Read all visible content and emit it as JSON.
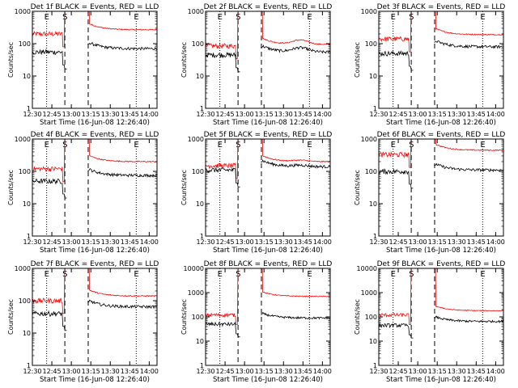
{
  "shared": {
    "xlabel": "Start Time (16-Jun-08 12:26:40)",
    "ylabel": "Counts/sec",
    "x_ticks": [
      "12:30",
      "12:45",
      "13:00",
      "13:15",
      "13:30",
      "13:45",
      "14:00"
    ],
    "x_tick_minutes": [
      30,
      45,
      60,
      75,
      90,
      105,
      120
    ],
    "markers": [
      {
        "label": "E",
        "minute": 41,
        "style": "dotted"
      },
      {
        "label": "S",
        "minute": 55,
        "style": "dashed"
      },
      {
        "label": "",
        "minute": 73,
        "style": "dashed"
      },
      {
        "label": "E",
        "minute": 110,
        "style": "dotted"
      }
    ],
    "x_range_minutes": [
      30,
      126
    ],
    "colors": {
      "events": "#000000",
      "lld": "#ff0000"
    }
  },
  "chart_data": [
    {
      "type": "line",
      "title": "Det 1f BLACK = Events, RED = LLD",
      "y_ticks": [
        "1",
        "10",
        "100",
        "1000"
      ],
      "ylim": [
        1,
        1000
      ],
      "events_level": 55,
      "lld_level": 200,
      "events_post": 70,
      "lld_post": 270,
      "bump": 1.0
    },
    {
      "type": "line",
      "title": "Det 2f BLACK = Events, RED = LLD",
      "y_ticks": [
        "1",
        "10",
        "100",
        "1000"
      ],
      "ylim": [
        1,
        1000
      ],
      "events_level": 45,
      "lld_level": 85,
      "events_post": 55,
      "lld_post": 95,
      "bump": 1.35
    },
    {
      "type": "line",
      "title": "Det 3f BLACK = Events, RED = LLD",
      "y_ticks": [
        "1",
        "10",
        "100",
        "1000"
      ],
      "ylim": [
        1,
        1000
      ],
      "events_level": 50,
      "lld_level": 140,
      "events_post": 80,
      "lld_post": 190,
      "bump": 1.0
    },
    {
      "type": "line",
      "title": "Det 4f BLACK = Events, RED = LLD",
      "y_ticks": [
        "1",
        "10",
        "100",
        "1000"
      ],
      "ylim": [
        1,
        1000
      ],
      "events_level": 50,
      "lld_level": 120,
      "events_post": 75,
      "lld_post": 200,
      "bump": 1.0
    },
    {
      "type": "line",
      "title": "Det 5f BLACK = Events, RED = LLD",
      "y_ticks": [
        "1",
        "10",
        "100",
        "1000"
      ],
      "ylim": [
        1,
        1000
      ],
      "events_level": 110,
      "lld_level": 150,
      "events_post": 140,
      "lld_post": 200,
      "bump": 1.1
    },
    {
      "type": "line",
      "title": "Det 6f BLACK = Events, RED = LLD",
      "y_ticks": [
        "1",
        "10",
        "100",
        "1000"
      ],
      "ylim": [
        1,
        1000
      ],
      "events_level": 100,
      "lld_level": 330,
      "events_post": 110,
      "lld_post": 450,
      "bump": 1.0
    },
    {
      "type": "line",
      "title": "Det 7f BLACK = Events, RED = LLD",
      "y_ticks": [
        "1",
        "10",
        "100",
        "1000"
      ],
      "ylim": [
        1,
        1000
      ],
      "events_level": 40,
      "lld_level": 100,
      "events_post": 65,
      "lld_post": 140,
      "bump": 1.0
    },
    {
      "type": "line",
      "title": "Det 8f BLACK = Events, RED = LLD",
      "y_ticks": [
        "1",
        "10",
        "100",
        "1000",
        "10000"
      ],
      "ylim": [
        1,
        10000
      ],
      "events_level": 50,
      "lld_level": 120,
      "events_post": 90,
      "lld_post": 700,
      "bump": 1.0
    },
    {
      "type": "line",
      "title": "Det 9f BLACK = Events, RED = LLD",
      "y_ticks": [
        "1",
        "10",
        "100",
        "1000",
        "10000"
      ],
      "ylim": [
        1,
        10000
      ],
      "events_level": 45,
      "lld_level": 120,
      "events_post": 65,
      "lld_post": 180,
      "bump": 1.0
    }
  ]
}
